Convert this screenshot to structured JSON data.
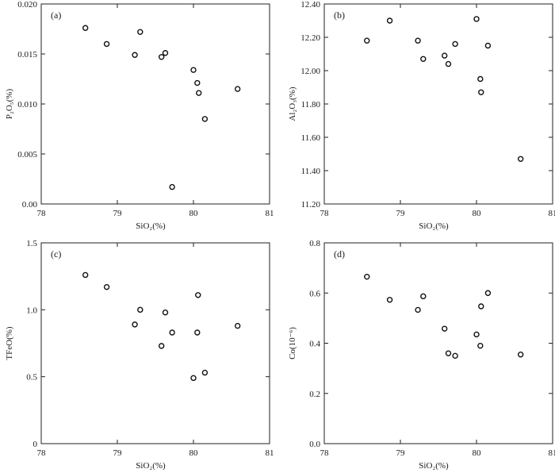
{
  "chart_data": [
    {
      "type": "scatter",
      "panel_label": "(a)",
      "xlabel": "SiO₂(%)",
      "ylabel": "P₂O₅(%)",
      "xlim": [
        78,
        81
      ],
      "ylim": [
        0,
        0.02
      ],
      "x_ticks": [
        78,
        79,
        80,
        81
      ],
      "x_tick_labels": [
        "78",
        "79",
        "80",
        "81"
      ],
      "y_ticks": [
        0,
        0.005,
        0.01,
        0.015,
        0.02
      ],
      "y_tick_labels": [
        "0.00",
        "0.005",
        "0.010",
        "0.015",
        "0.020"
      ],
      "points": [
        {
          "x": 78.58,
          "y": 0.0176
        },
        {
          "x": 78.86,
          "y": 0.016
        },
        {
          "x": 79.23,
          "y": 0.0149
        },
        {
          "x": 79.3,
          "y": 0.0172
        },
        {
          "x": 79.58,
          "y": 0.0147
        },
        {
          "x": 79.63,
          "y": 0.0151
        },
        {
          "x": 79.72,
          "y": 0.0017
        },
        {
          "x": 80.0,
          "y": 0.0134
        },
        {
          "x": 80.05,
          "y": 0.0121
        },
        {
          "x": 80.07,
          "y": 0.0111
        },
        {
          "x": 80.15,
          "y": 0.0085
        },
        {
          "x": 80.58,
          "y": 0.0115
        }
      ]
    },
    {
      "type": "scatter",
      "panel_label": "(b)",
      "xlabel": "SiO₂(%)",
      "ylabel": "Al₂O₃(%)",
      "xlim": [
        78,
        81
      ],
      "ylim": [
        11.2,
        12.4
      ],
      "x_ticks": [
        78,
        79,
        80,
        81
      ],
      "x_tick_labels": [
        "78",
        "79",
        "80",
        "81"
      ],
      "y_ticks": [
        11.2,
        11.4,
        11.6,
        11.8,
        12.0,
        12.2,
        12.4
      ],
      "y_tick_labels": [
        "11.20",
        "11.40",
        "11.60",
        "11.80",
        "12.00",
        "12.20",
        "12.40"
      ],
      "points": [
        {
          "x": 78.56,
          "y": 12.18
        },
        {
          "x": 78.86,
          "y": 12.3
        },
        {
          "x": 79.23,
          "y": 12.18
        },
        {
          "x": 79.3,
          "y": 12.07
        },
        {
          "x": 79.58,
          "y": 12.09
        },
        {
          "x": 79.63,
          "y": 12.04
        },
        {
          "x": 79.72,
          "y": 12.16
        },
        {
          "x": 80.0,
          "y": 12.31
        },
        {
          "x": 80.05,
          "y": 11.95
        },
        {
          "x": 80.06,
          "y": 11.87
        },
        {
          "x": 80.15,
          "y": 12.15
        },
        {
          "x": 80.58,
          "y": 11.47
        }
      ]
    },
    {
      "type": "scatter",
      "panel_label": "(c)",
      "xlabel": "SiO₂(%)",
      "ylabel": "TFeO(%)",
      "xlim": [
        78,
        81
      ],
      "ylim": [
        0,
        1.5
      ],
      "x_ticks": [
        78,
        79,
        80,
        81
      ],
      "x_tick_labels": [
        "78",
        "79",
        "80",
        "81"
      ],
      "y_ticks": [
        0,
        0.5,
        1.0,
        1.5
      ],
      "y_tick_labels": [
        "0",
        "0.5",
        "1.0",
        "1.5"
      ],
      "points": [
        {
          "x": 78.58,
          "y": 1.26
        },
        {
          "x": 78.86,
          "y": 1.17
        },
        {
          "x": 79.23,
          "y": 0.89
        },
        {
          "x": 79.3,
          "y": 1.0
        },
        {
          "x": 79.58,
          "y": 0.73
        },
        {
          "x": 79.63,
          "y": 0.98
        },
        {
          "x": 79.72,
          "y": 0.83
        },
        {
          "x": 80.0,
          "y": 0.49
        },
        {
          "x": 80.05,
          "y": 0.83
        },
        {
          "x": 80.06,
          "y": 1.11
        },
        {
          "x": 80.15,
          "y": 0.53
        },
        {
          "x": 80.58,
          "y": 0.88
        }
      ]
    },
    {
      "type": "scatter",
      "panel_label": "(d)",
      "xlabel": "SiO₂(%)",
      "ylabel": "Co(10⁻⁶)",
      "xlim": [
        78,
        81
      ],
      "ylim": [
        0,
        0.8
      ],
      "x_ticks": [
        78,
        79,
        80,
        81
      ],
      "x_tick_labels": [
        "78",
        "79",
        "80",
        "81"
      ],
      "y_ticks": [
        0,
        0.2,
        0.4,
        0.6,
        0.8
      ],
      "y_tick_labels": [
        "0.0",
        "0.2",
        "0.4",
        "0.6",
        "0.8"
      ],
      "points": [
        {
          "x": 78.56,
          "y": 0.665
        },
        {
          "x": 78.86,
          "y": 0.573
        },
        {
          "x": 79.23,
          "y": 0.533
        },
        {
          "x": 79.3,
          "y": 0.587
        },
        {
          "x": 79.58,
          "y": 0.458
        },
        {
          "x": 79.63,
          "y": 0.36
        },
        {
          "x": 79.72,
          "y": 0.35
        },
        {
          "x": 80.0,
          "y": 0.435
        },
        {
          "x": 80.05,
          "y": 0.39
        },
        {
          "x": 80.06,
          "y": 0.547
        },
        {
          "x": 80.15,
          "y": 0.6
        },
        {
          "x": 80.58,
          "y": 0.355
        }
      ]
    }
  ]
}
